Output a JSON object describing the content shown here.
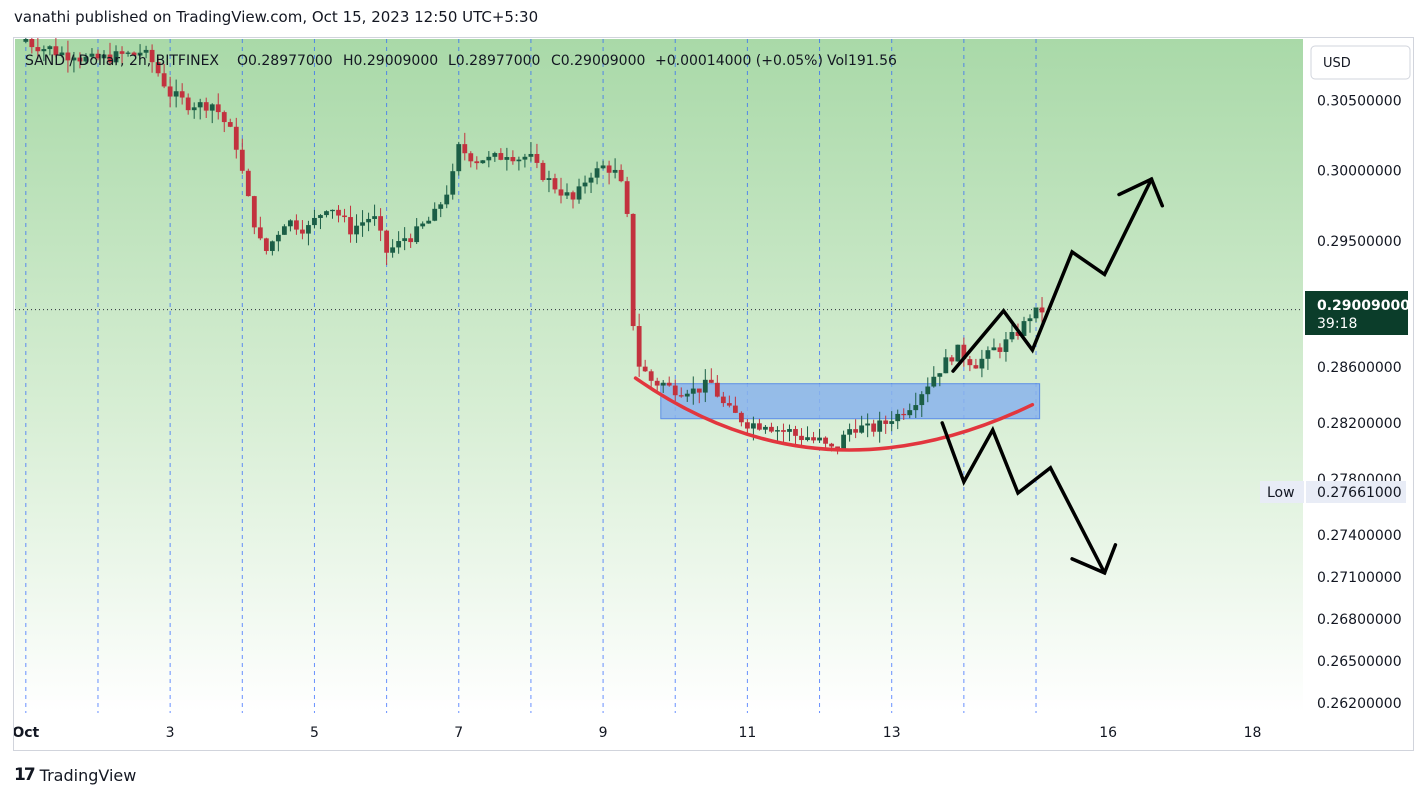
{
  "header": {
    "published": "vanathi published on TradingView.com, Oct 15, 2023 12:50 UTC+5:30"
  },
  "legend": {
    "symbol": "SAND / Dollar, 2h, BITFINEX",
    "open": "O0.28977000",
    "high": "H0.29009000",
    "low": "L0.28977000",
    "close": "C0.29009000",
    "change": "+0.00014000 (+0.05%)",
    "volume": "Vol191.56"
  },
  "currency_button": "USD",
  "price_tag": {
    "price": "0.29009000",
    "countdown": "39:18"
  },
  "low_tag": {
    "label": "Low",
    "price": "0.27661000"
  },
  "footer": {
    "brand": "TradingView"
  },
  "colors": {
    "up": "#1b5e46",
    "down": "#c2323e",
    "bg_top": "#a9d9a8",
    "bg_bottom": "#ffffff",
    "zone_fill": "#8ab3ec",
    "curve": "#e2363e",
    "grid": "#2962ff"
  },
  "chart_data": {
    "type": "candlestick",
    "y_range": [
      0.2613,
      0.3094
    ],
    "y_ticks": [
      "0.30500000",
      "0.30000000",
      "0.29500000",
      "0.29000000",
      "0.28600000",
      "0.28200000",
      "0.27800000",
      "0.27400000",
      "0.27100000",
      "0.26800000",
      "0.26500000",
      "0.26200000"
    ],
    "y_tick_values": [
      0.305,
      0.3,
      0.295,
      0.29,
      0.286,
      0.282,
      0.278,
      0.274,
      0.271,
      0.268,
      0.265,
      0.262
    ],
    "x_labels": [
      "Oct",
      "3",
      "5",
      "7",
      "9",
      "11",
      "13",
      "16",
      "18"
    ],
    "x_label_days": [
      1,
      3,
      5,
      7,
      9,
      11,
      13,
      16,
      18
    ],
    "x_range_days": [
      0.85,
      18.7
    ],
    "vertical_grid_days": [
      1,
      2,
      3,
      4,
      5,
      6,
      7,
      8,
      9,
      10,
      11,
      12,
      13,
      14,
      15
    ],
    "current_price": 0.29009,
    "trend": [
      [
        1.0,
        0.3092
      ],
      [
        1.4,
        0.3085
      ],
      [
        1.9,
        0.3079
      ],
      [
        2.4,
        0.3083
      ],
      [
        2.7,
        0.3082
      ],
      [
        3.0,
        0.3055
      ],
      [
        3.3,
        0.3046
      ],
      [
        3.6,
        0.3048
      ],
      [
        3.9,
        0.3022
      ],
      [
        4.1,
        0.2975
      ],
      [
        4.3,
        0.294
      ],
      [
        4.6,
        0.2965
      ],
      [
        4.9,
        0.2958
      ],
      [
        5.2,
        0.2977
      ],
      [
        5.5,
        0.2958
      ],
      [
        5.8,
        0.2968
      ],
      [
        6.0,
        0.2942
      ],
      [
        6.3,
        0.2952
      ],
      [
        6.6,
        0.2962
      ],
      [
        6.9,
        0.2992
      ],
      [
        7.0,
        0.3016
      ],
      [
        7.3,
        0.3006
      ],
      [
        7.7,
        0.3012
      ],
      [
        8.0,
        0.3006
      ],
      [
        8.3,
        0.299
      ],
      [
        8.6,
        0.2978
      ],
      [
        8.8,
        0.2998
      ],
      [
        9.1,
        0.3002
      ],
      [
        9.3,
        0.2985
      ],
      [
        9.45,
        0.287
      ],
      [
        9.6,
        0.2852
      ],
      [
        9.85,
        0.2846
      ],
      [
        10.2,
        0.2842
      ],
      [
        10.5,
        0.2848
      ],
      [
        10.7,
        0.283
      ],
      [
        11.0,
        0.282
      ],
      [
        11.3,
        0.2818
      ],
      [
        11.6,
        0.2812
      ],
      [
        11.9,
        0.2808
      ],
      [
        12.2,
        0.28
      ],
      [
        12.45,
        0.2818
      ],
      [
        12.7,
        0.2815
      ],
      [
        13.0,
        0.2822
      ],
      [
        13.3,
        0.2835
      ],
      [
        13.6,
        0.2855
      ],
      [
        13.9,
        0.2872
      ],
      [
        14.15,
        0.2862
      ],
      [
        14.4,
        0.287
      ],
      [
        14.7,
        0.2882
      ],
      [
        14.95,
        0.2897
      ],
      [
        15.1,
        0.2901
      ]
    ],
    "annotations": {
      "support_zone": {
        "x": [
          9.8,
          15.05
        ],
        "y": [
          0.2823,
          0.2848
        ]
      },
      "rounding_bottom": {
        "start": [
          9.45,
          0.2852
        ],
        "control": [
          12.0,
          0.276
        ],
        "end": [
          14.95,
          0.2833
        ]
      },
      "bull_path": [
        [
          13.85,
          0.2857
        ],
        [
          14.55,
          0.29
        ],
        [
          14.95,
          0.2872
        ],
        [
          15.5,
          0.2942
        ],
        [
          15.95,
          0.2926
        ],
        [
          16.6,
          0.2994
        ]
      ],
      "bull_arrowhead": [
        [
          16.15,
          0.2983
        ],
        [
          16.6,
          0.2994
        ],
        [
          16.75,
          0.2975
        ]
      ],
      "bear_path": [
        [
          13.7,
          0.282
        ],
        [
          14.0,
          0.2778
        ],
        [
          14.4,
          0.2815
        ],
        [
          14.75,
          0.277
        ],
        [
          15.2,
          0.2788
        ],
        [
          15.95,
          0.2713
        ]
      ],
      "bear_arrowhead": [
        [
          15.5,
          0.2723
        ],
        [
          15.95,
          0.2713
        ],
        [
          16.1,
          0.2733
        ]
      ]
    }
  }
}
